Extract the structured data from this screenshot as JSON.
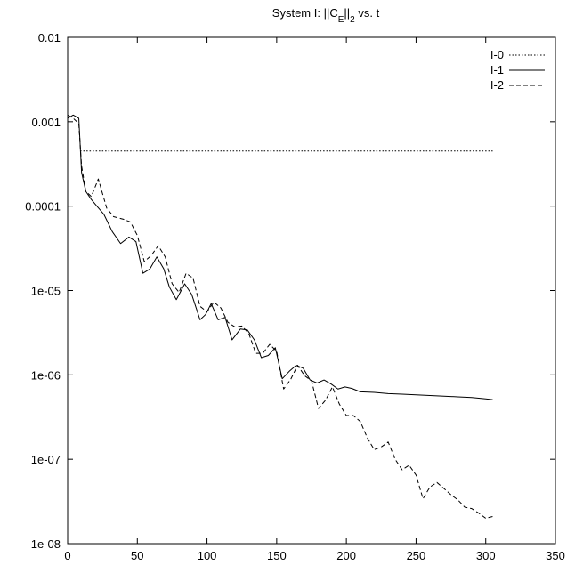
{
  "chart_data": {
    "type": "line",
    "title": {
      "pre": "System I: ||C",
      "sub1": "E",
      "mid": "||",
      "sub2": "2",
      "post": " vs. t"
    },
    "xlabel": "",
    "ylabel": "",
    "x_scale": "linear",
    "y_scale": "log",
    "xlim": [
      0,
      350
    ],
    "ylim": [
      1e-08,
      0.01
    ],
    "x_ticks": [
      0,
      50,
      100,
      150,
      200,
      250,
      300,
      350
    ],
    "x_tick_labels": [
      "0",
      "50",
      "100",
      "150",
      "200",
      "250",
      "300",
      "350"
    ],
    "y_ticks": [
      1e-08,
      1e-07,
      1e-06,
      1e-05,
      0.0001,
      0.001,
      0.01
    ],
    "y_tick_labels": [
      "1e-08",
      "1e-07",
      "1e-06",
      "1e-05",
      "0.0001",
      "0.001",
      "0.01"
    ],
    "grid": false,
    "legend_position": "top-right",
    "series": [
      {
        "name": "I-0",
        "style": "dotted",
        "x": [
          9,
          305
        ],
        "y": [
          0.00045,
          0.00045
        ]
      },
      {
        "name": "I-1",
        "style": "solid",
        "x": [
          0,
          4,
          8,
          10,
          13,
          17,
          21,
          26,
          32,
          38,
          44,
          49,
          54,
          59,
          64,
          69,
          73,
          78,
          84,
          89,
          95,
          99,
          103,
          108,
          113,
          118,
          124,
          129,
          134,
          139,
          144,
          149,
          154,
          159,
          164,
          169,
          174,
          179,
          184,
          189,
          194,
          199,
          204,
          210,
          220,
          230,
          240,
          250,
          260,
          270,
          280,
          290,
          300,
          305
        ],
        "y": [
          0.0011,
          0.0012,
          0.0011,
          0.00025,
          0.00015,
          0.00012,
          0.0001,
          8e-05,
          5e-05,
          3.6e-05,
          4.3e-05,
          3.8e-05,
          1.6e-05,
          1.8e-05,
          2.5e-05,
          1.8e-05,
          1.1e-05,
          7.8e-06,
          1.2e-05,
          9e-06,
          4.5e-06,
          5.2e-06,
          7e-06,
          4.5e-06,
          4.8e-06,
          2.6e-06,
          3.5e-06,
          3.4e-06,
          2.6e-06,
          1.6e-06,
          1.7e-06,
          2.1e-06,
          9e-07,
          1.1e-06,
          1.3e-06,
          1.2e-06,
          8.7e-07,
          8e-07,
          8.7e-07,
          7.8e-07,
          6.8e-07,
          7.2e-07,
          6.9e-07,
          6.3e-07,
          6.2e-07,
          6e-07,
          5.9e-07,
          5.8e-07,
          5.7e-07,
          5.6e-07,
          5.5e-07,
          5.4e-07,
          5.2e-07,
          5.1e-07
        ]
      },
      {
        "name": "I-2",
        "style": "dashed",
        "x": [
          0,
          4,
          8,
          10,
          13,
          17,
          22,
          28,
          33,
          40,
          45,
          50,
          55,
          60,
          65,
          70,
          75,
          80,
          85,
          90,
          95,
          100,
          105,
          110,
          115,
          120,
          125,
          130,
          135,
          140,
          145,
          150,
          155,
          160,
          165,
          170,
          175,
          180,
          185,
          190,
          195,
          200,
          205,
          210,
          215,
          220,
          225,
          230,
          235,
          240,
          245,
          250,
          255,
          260,
          265,
          270,
          275,
          280,
          285,
          290,
          295,
          300,
          305
        ],
        "y": [
          0.0012,
          0.0011,
          0.00095,
          0.0003,
          0.00015,
          0.00013,
          0.00021,
          9.5e-05,
          7.5e-05,
          7e-05,
          6.5e-05,
          4.5e-05,
          2.2e-05,
          2.6e-05,
          3.4e-05,
          2.5e-05,
          1.2e-05,
          9.5e-06,
          1.6e-05,
          1.4e-05,
          6.5e-06,
          5.6e-06,
          7.3e-06,
          6.2e-06,
          4.2e-06,
          3.7e-06,
          3.8e-06,
          3.1e-06,
          1.8e-06,
          1.8e-06,
          2.3e-06,
          1.9e-06,
          6.8e-07,
          8.8e-07,
          1.3e-06,
          9.8e-07,
          8.5e-07,
          4e-07,
          5e-07,
          7.2e-07,
          4.5e-07,
          3.3e-07,
          3.3e-07,
          2.8e-07,
          1.8e-07,
          1.3e-07,
          1.4e-07,
          1.6e-07,
          1e-07,
          7.5e-08,
          8.5e-08,
          6.5e-08,
          3.4e-08,
          4.7e-08,
          5.3e-08,
          4.5e-08,
          3.8e-08,
          3.3e-08,
          2.7e-08,
          2.6e-08,
          2.3e-08,
          2e-08,
          2.1e-08
        ]
      }
    ]
  }
}
